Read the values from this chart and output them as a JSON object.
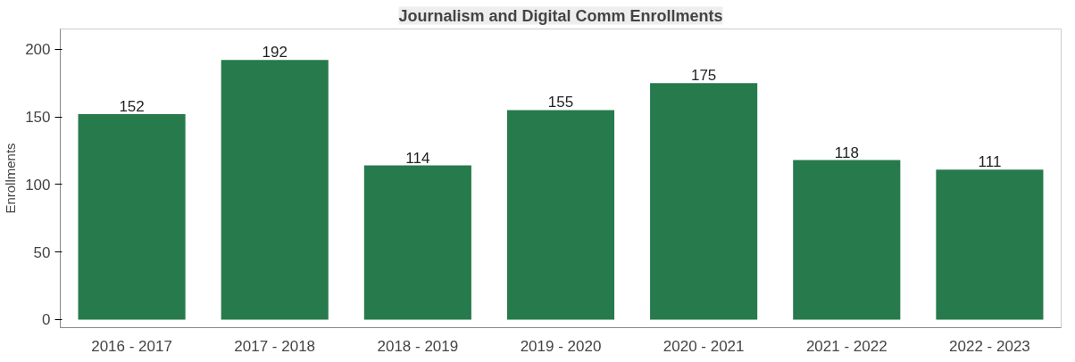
{
  "chart_data": {
    "type": "bar",
    "title": "Journalism and Digital Comm Enrollments",
    "ylabel": "Enrollments",
    "categories": [
      "2016 - 2017",
      "2017 - 2018",
      "2018 - 2019",
      "2019 - 2020",
      "2020 - 2021",
      "2021 - 2022",
      "2022 - 2023"
    ],
    "values": [
      152,
      192,
      114,
      155,
      175,
      118,
      111
    ],
    "color": "#267a4c",
    "ylim": [
      -6,
      215
    ],
    "yticks": [
      0,
      50,
      100,
      150,
      200
    ],
    "grid": false,
    "data_labels": true
  }
}
